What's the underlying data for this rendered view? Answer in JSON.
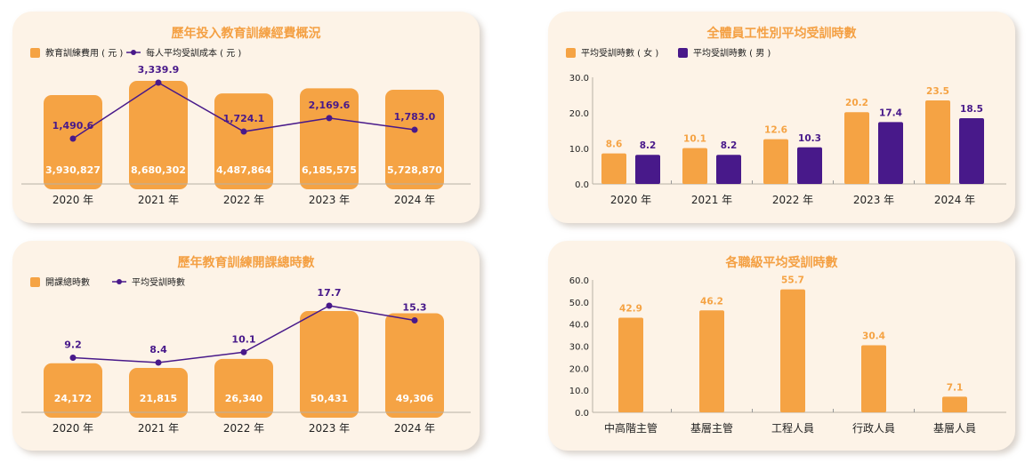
{
  "colors": {
    "orange": "#f5a344",
    "purple": "#48198a",
    "card": "#fdf3e7"
  },
  "chart_data": [
    {
      "type": "bar",
      "title": "歷年投入教育訓練經費概況",
      "categories": [
        "2020 年",
        "2021 年",
        "2022 年",
        "2023 年",
        "2024 年"
      ],
      "series": [
        {
          "name": "教育訓練費用 ( 元 )",
          "type": "bar",
          "values": [
            3930827,
            8680302,
            4487864,
            6185575,
            5728870
          ],
          "labels": [
            "3,930,827",
            "8,680,302",
            "4,487,864",
            "6,185,575",
            "5,728,870"
          ]
        },
        {
          "name": "每人平均受訓成本 ( 元 )",
          "type": "line",
          "values": [
            1490.6,
            3339.9,
            1724.1,
            2169.6,
            1783.0
          ],
          "labels": [
            "1,490.6",
            "3,339.9",
            "1,724.1",
            "2,169.6",
            "1,783.0"
          ]
        }
      ]
    },
    {
      "type": "bar",
      "title": "全體員工性別平均受訓時數",
      "categories": [
        "2020 年",
        "2021 年",
        "2022 年",
        "2023 年",
        "2024 年"
      ],
      "series": [
        {
          "name": "平均受訓時數 ( 女 )",
          "values": [
            8.6,
            10.1,
            12.6,
            20.2,
            23.5
          ],
          "labels": [
            "8.6",
            "10.1",
            "12.6",
            "20.2",
            "23.5"
          ]
        },
        {
          "name": "平均受訓時數 ( 男 )",
          "values": [
            8.2,
            8.2,
            10.3,
            17.4,
            18.5
          ],
          "labels": [
            "8.2",
            "8.2",
            "10.3",
            "17.4",
            "18.5"
          ]
        }
      ],
      "ylim": [
        0,
        30
      ],
      "yticks": [
        "0.0",
        "10.0",
        "20.0",
        "30.0"
      ]
    },
    {
      "type": "bar",
      "title": "歷年教育訓練開課總時數",
      "categories": [
        "2020 年",
        "2021 年",
        "2022 年",
        "2023 年",
        "2024 年"
      ],
      "series": [
        {
          "name": "開課總時數",
          "type": "bar",
          "values": [
            24172,
            21815,
            26340,
            50431,
            49306
          ],
          "labels": [
            "24,172",
            "21,815",
            "26,340",
            "50,431",
            "49,306"
          ]
        },
        {
          "name": "平均受訓時數",
          "type": "line",
          "values": [
            9.2,
            8.4,
            10.1,
            17.7,
            15.3
          ],
          "labels": [
            "9.2",
            "8.4",
            "10.1",
            "17.7",
            "15.3"
          ]
        }
      ]
    },
    {
      "type": "bar",
      "title": "各職級平均受訓時數",
      "categories": [
        "中高階主管",
        "基層主管",
        "工程人員",
        "行政人員",
        "基層人員"
      ],
      "series": [
        {
          "values": [
            42.9,
            46.2,
            55.7,
            30.4,
            7.1
          ],
          "labels": [
            "42.9",
            "46.2",
            "55.7",
            "30.4",
            "7.1"
          ]
        }
      ],
      "ylim": [
        0,
        60
      ],
      "yticks": [
        "0.0",
        "10.0",
        "20.0",
        "30.0",
        "40.0",
        "50.0",
        "60.0"
      ]
    }
  ]
}
